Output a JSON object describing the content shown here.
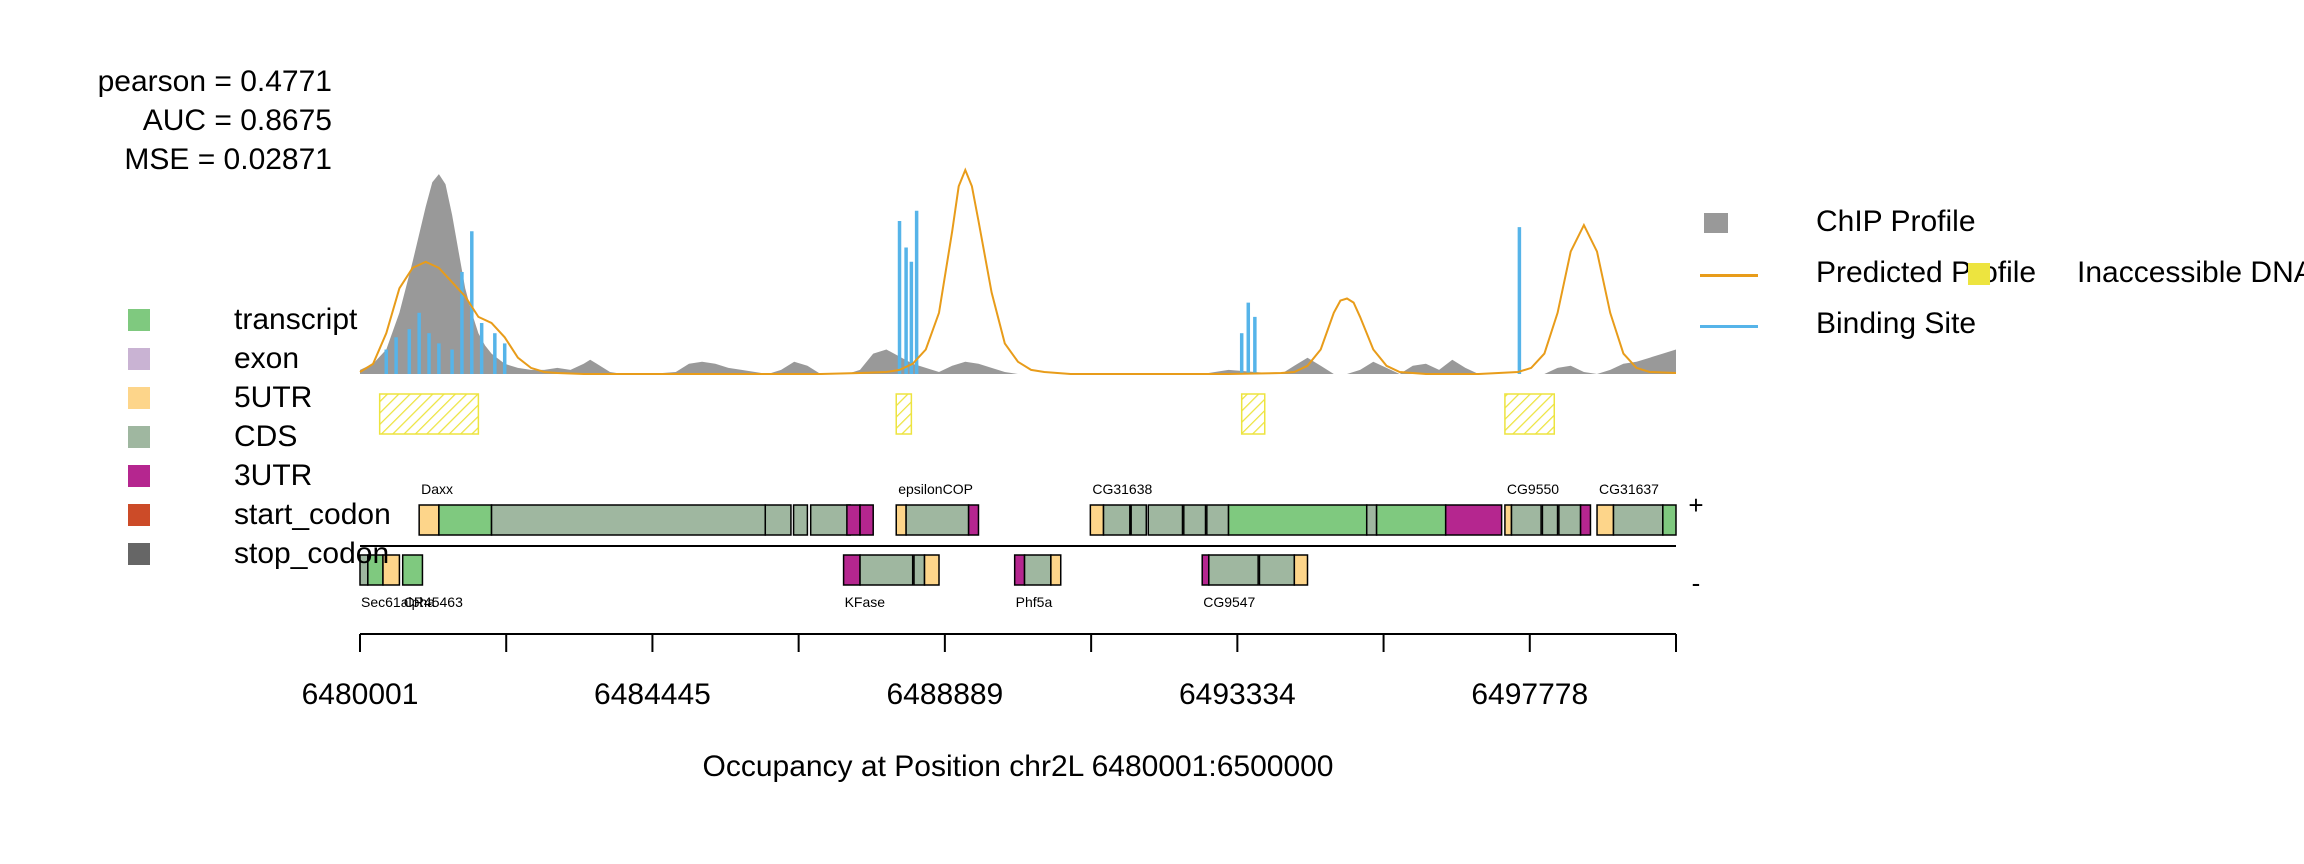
{
  "stats": {
    "pearson": "pearson = 0.4771",
    "auc": "AUC = 0.8675",
    "mse": "MSE = 0.02871"
  },
  "legend_left": [
    {
      "label": "transcript",
      "color": "#7fc97f"
    },
    {
      "label": "exon",
      "color": "#c9b3d3"
    },
    {
      "label": "5UTR",
      "color": "#fdd58a"
    },
    {
      "label": "CDS",
      "color": "#9fb7a0"
    },
    {
      "label": "3UTR",
      "color": "#b5268f"
    },
    {
      "label": "start_codon",
      "color": "#cc4b28"
    },
    {
      "label": "stop_codon",
      "color": "#666666"
    }
  ],
  "legend_right": {
    "chip": {
      "label": "ChIP Profile",
      "color": "#999999"
    },
    "predicted": {
      "label": "Predicted Profile",
      "color": "#e89c1a"
    },
    "binding": {
      "label": "Binding Site",
      "color": "#56b4e9"
    },
    "inaccessible": {
      "label": "Inaccessible DNA",
      "color": "#ede43f"
    }
  },
  "strands": {
    "plus": "+",
    "minus": "-"
  },
  "chart_data": {
    "type": "area",
    "xlabel": "Occupancy at Position chr2L 6480001:6500000",
    "xlim": [
      6480001,
      6500000
    ],
    "ylim": [
      0,
      1
    ],
    "x_ticks": [
      6480001,
      6482223,
      6484445,
      6486667,
      6488889,
      6491112,
      6493334,
      6495556,
      6497778,
      6500000
    ],
    "x_tick_labels": [
      "6480001",
      "6484445",
      "6488889",
      "6493334",
      "6497778"
    ],
    "series": [
      {
        "name": "ChIP Profile",
        "x": [
          6480001,
          6480200,
          6480400,
          6480600,
          6480800,
          6481000,
          6481100,
          6481200,
          6481300,
          6481400,
          6481500,
          6481600,
          6481700,
          6481800,
          6481900,
          6482000,
          6482200,
          6482400,
          6482600,
          6482800,
          6483000,
          6483200,
          6483400,
          6483500,
          6483600,
          6483800,
          6484000,
          6484400,
          6484800,
          6485000,
          6485200,
          6485400,
          6485600,
          6485800,
          6486200,
          6486400,
          6486600,
          6486800,
          6487000,
          6487400,
          6487600,
          6487800,
          6488000,
          6488400,
          6488800,
          6489000,
          6489200,
          6489400,
          6489600,
          6489800,
          6490000,
          6490400,
          6490800,
          6491200,
          6491600,
          6492000,
          6492400,
          6492800,
          6493200,
          6493600,
          6494000,
          6494200,
          6494400,
          6494600,
          6494800,
          6495000,
          6495200,
          6495400,
          6495600,
          6495800,
          6496000,
          6496200,
          6496400,
          6496600,
          6496800,
          6497000,
          6497200,
          6497400,
          6497600,
          6497800,
          6498000,
          6498200,
          6498400,
          6498600,
          6498800,
          6499000,
          6499200,
          6499400,
          6499600,
          6499800,
          6500000
        ],
        "values": [
          0.02,
          0.05,
          0.12,
          0.3,
          0.55,
          0.82,
          0.94,
          0.98,
          0.93,
          0.78,
          0.6,
          0.42,
          0.3,
          0.2,
          0.14,
          0.1,
          0.05,
          0.03,
          0.02,
          0.02,
          0.03,
          0.02,
          0.05,
          0.07,
          0.05,
          0.01,
          0.0,
          0.0,
          0.01,
          0.05,
          0.06,
          0.05,
          0.03,
          0.02,
          0.0,
          0.02,
          0.06,
          0.04,
          0.0,
          0.0,
          0.02,
          0.1,
          0.12,
          0.05,
          0.01,
          0.04,
          0.06,
          0.05,
          0.03,
          0.01,
          0.0,
          0.0,
          0.0,
          0.0,
          0.0,
          0.0,
          0.0,
          0.0,
          0.02,
          0.01,
          0.0,
          0.04,
          0.08,
          0.04,
          0.0,
          0.0,
          0.02,
          0.06,
          0.03,
          0.0,
          0.04,
          0.05,
          0.02,
          0.07,
          0.03,
          0.0,
          0.0,
          0.0,
          0.0,
          0.0,
          0.0,
          0.03,
          0.04,
          0.01,
          0.0,
          0.02,
          0.05,
          0.06,
          0.08,
          0.1,
          0.12
        ]
      },
      {
        "name": "Predicted Profile",
        "x": [
          6480001,
          6480200,
          6480400,
          6480600,
          6480800,
          6481000,
          6481200,
          6481400,
          6481600,
          6481800,
          6482000,
          6482200,
          6482400,
          6482600,
          6482800,
          6483000,
          6483400,
          6484000,
          6486000,
          6487000,
          6487600,
          6488000,
          6488200,
          6488400,
          6488600,
          6488800,
          6489000,
          6489100,
          6489200,
          6489300,
          6489400,
          6489600,
          6489800,
          6490000,
          6490200,
          6490400,
          6490800,
          6491400,
          6492200,
          6493200,
          6494000,
          6494200,
          6494400,
          6494600,
          6494800,
          6494900,
          6495000,
          6495100,
          6495200,
          6495400,
          6495600,
          6495800,
          6496200,
          6497000,
          6497600,
          6497800,
          6498000,
          6498200,
          6498400,
          6498600,
          6498800,
          6499000,
          6499200,
          6499400,
          6499600,
          6500000
        ],
        "values": [
          0.01,
          0.05,
          0.2,
          0.42,
          0.52,
          0.55,
          0.52,
          0.45,
          0.38,
          0.28,
          0.25,
          0.18,
          0.08,
          0.03,
          0.01,
          0.005,
          0.0,
          0.0,
          0.0,
          0.0,
          0.005,
          0.01,
          0.02,
          0.05,
          0.12,
          0.3,
          0.7,
          0.92,
          1.0,
          0.92,
          0.75,
          0.4,
          0.15,
          0.06,
          0.02,
          0.01,
          0.0,
          0.0,
          0.0,
          0.0,
          0.005,
          0.01,
          0.04,
          0.12,
          0.3,
          0.36,
          0.37,
          0.35,
          0.28,
          0.12,
          0.04,
          0.01,
          0.0,
          0.0,
          0.01,
          0.03,
          0.1,
          0.3,
          0.6,
          0.73,
          0.6,
          0.3,
          0.1,
          0.03,
          0.01,
          0.005
        ]
      },
      {
        "name": "Binding Site",
        "x": [
          6480400,
          6480550,
          6480750,
          6480900,
          6481050,
          6481200,
          6481400,
          6481550,
          6481700,
          6481850,
          6482050,
          6482200,
          6488200,
          6488300,
          6488380,
          6488460,
          6493400,
          6493500,
          6493600,
          6497620
        ],
        "values": [
          0.12,
          0.18,
          0.22,
          0.3,
          0.2,
          0.15,
          0.12,
          0.5,
          0.7,
          0.25,
          0.2,
          0.15,
          0.75,
          0.62,
          0.55,
          0.8,
          0.2,
          0.35,
          0.28,
          0.72
        ]
      }
    ],
    "inaccessible_regions": [
      [
        6480300,
        6481800
      ],
      [
        6488150,
        6488380
      ],
      [
        6493400,
        6493750
      ],
      [
        6497400,
        6498150
      ]
    ],
    "genes": [
      {
        "name": "Daxx",
        "strand": "+",
        "start": 6480900,
        "end": 6487800,
        "features": [
          {
            "type": "5UTR",
            "start": 6480900,
            "end": 6481200
          },
          {
            "type": "transcript",
            "start": 6481200,
            "end": 6482000
          },
          {
            "type": "CDS",
            "start": 6482000,
            "end": 6486160
          },
          {
            "type": "CDS",
            "start": 6486160,
            "end": 6486550
          },
          {
            "type": "CDS",
            "start": 6486590,
            "end": 6486800
          },
          {
            "type": "CDS",
            "start": 6486850,
            "end": 6487450
          },
          {
            "type": "3UTR",
            "start": 6487400,
            "end": 6487600
          },
          {
            "type": "3UTR",
            "start": 6487600,
            "end": 6487800
          }
        ]
      },
      {
        "name": "epsilonCOP",
        "strand": "+",
        "start": 6488150,
        "end": 6489400,
        "features": [
          {
            "type": "5UTR",
            "start": 6488150,
            "end": 6488300
          },
          {
            "type": "CDS",
            "start": 6488300,
            "end": 6489250
          },
          {
            "type": "3UTR",
            "start": 6489250,
            "end": 6489400
          }
        ]
      },
      {
        "name": "CG31638",
        "strand": "+",
        "start": 6491100,
        "end": 6494300,
        "features": [
          {
            "type": "5UTR",
            "start": 6491100,
            "end": 6491300
          },
          {
            "type": "CDS",
            "start": 6491300,
            "end": 6491700
          },
          {
            "type": "CDS",
            "start": 6491720,
            "end": 6491950
          },
          {
            "type": "CDS",
            "start": 6491980,
            "end": 6492500
          },
          {
            "type": "CDS",
            "start": 6492520,
            "end": 6492850
          },
          {
            "type": "CDS",
            "start": 6492870,
            "end": 6493200
          },
          {
            "type": "transcript",
            "start": 6493200,
            "end": 6495300
          },
          {
            "type": "CDS",
            "start": 6495300,
            "end": 6495450
          },
          {
            "type": "transcript",
            "start": 6495450,
            "end": 6496500
          },
          {
            "type": "3UTR",
            "start": 6496500,
            "end": 6497350
          }
        ]
      },
      {
        "name": "CG9550",
        "strand": "+",
        "start": 6497400,
        "end": 6498700,
        "features": [
          {
            "type": "5UTR",
            "start": 6497400,
            "end": 6497500
          },
          {
            "type": "CDS",
            "start": 6497500,
            "end": 6497950
          },
          {
            "type": "CDS",
            "start": 6497970,
            "end": 6498200
          },
          {
            "type": "CDS",
            "start": 6498220,
            "end": 6498550
          },
          {
            "type": "3UTR",
            "start": 6498550,
            "end": 6498700
          }
        ]
      },
      {
        "name": "CG31637",
        "strand": "+",
        "start": 6498800,
        "end": 6500000,
        "features": [
          {
            "type": "5UTR",
            "start": 6498800,
            "end": 6499050
          },
          {
            "type": "CDS",
            "start": 6499050,
            "end": 6499800
          },
          {
            "type": "transcript",
            "start": 6499800,
            "end": 6500000
          }
        ]
      },
      {
        "name": "Sec61alpha",
        "strand": "-",
        "start": 6480001,
        "end": 6480700,
        "features": [
          {
            "type": "CDS",
            "start": 6480001,
            "end": 6480120
          },
          {
            "type": "transcript",
            "start": 6480120,
            "end": 6480350
          },
          {
            "type": "5UTR",
            "start": 6480350,
            "end": 6480600
          }
        ]
      },
      {
        "name": "CR45463",
        "strand": "-",
        "start": 6480650,
        "end": 6480950,
        "features": [
          {
            "type": "transcript",
            "start": 6480650,
            "end": 6480950
          }
        ]
      },
      {
        "name": "KFase",
        "strand": "-",
        "start": 6487350,
        "end": 6488800,
        "features": [
          {
            "type": "3UTR",
            "start": 6487350,
            "end": 6487600
          },
          {
            "type": "CDS",
            "start": 6487600,
            "end": 6488400
          },
          {
            "type": "CDS",
            "start": 6488420,
            "end": 6488580
          },
          {
            "type": "5UTR",
            "start": 6488580,
            "end": 6488800
          }
        ]
      },
      {
        "name": "Phf5a",
        "strand": "-",
        "start": 6489950,
        "end": 6490650,
        "features": [
          {
            "type": "3UTR",
            "start": 6489950,
            "end": 6490100
          },
          {
            "type": "CDS",
            "start": 6490100,
            "end": 6490500
          },
          {
            "type": "5UTR",
            "start": 6490500,
            "end": 6490650
          }
        ]
      },
      {
        "name": "CG9547",
        "strand": "-",
        "start": 6492800,
        "end": 6494400,
        "features": [
          {
            "type": "3UTR",
            "start": 6492800,
            "end": 6492900
          },
          {
            "type": "CDS",
            "start": 6492900,
            "end": 6493650
          },
          {
            "type": "CDS",
            "start": 6493670,
            "end": 6494200
          },
          {
            "type": "5UTR",
            "start": 6494200,
            "end": 6494400
          }
        ]
      }
    ]
  }
}
